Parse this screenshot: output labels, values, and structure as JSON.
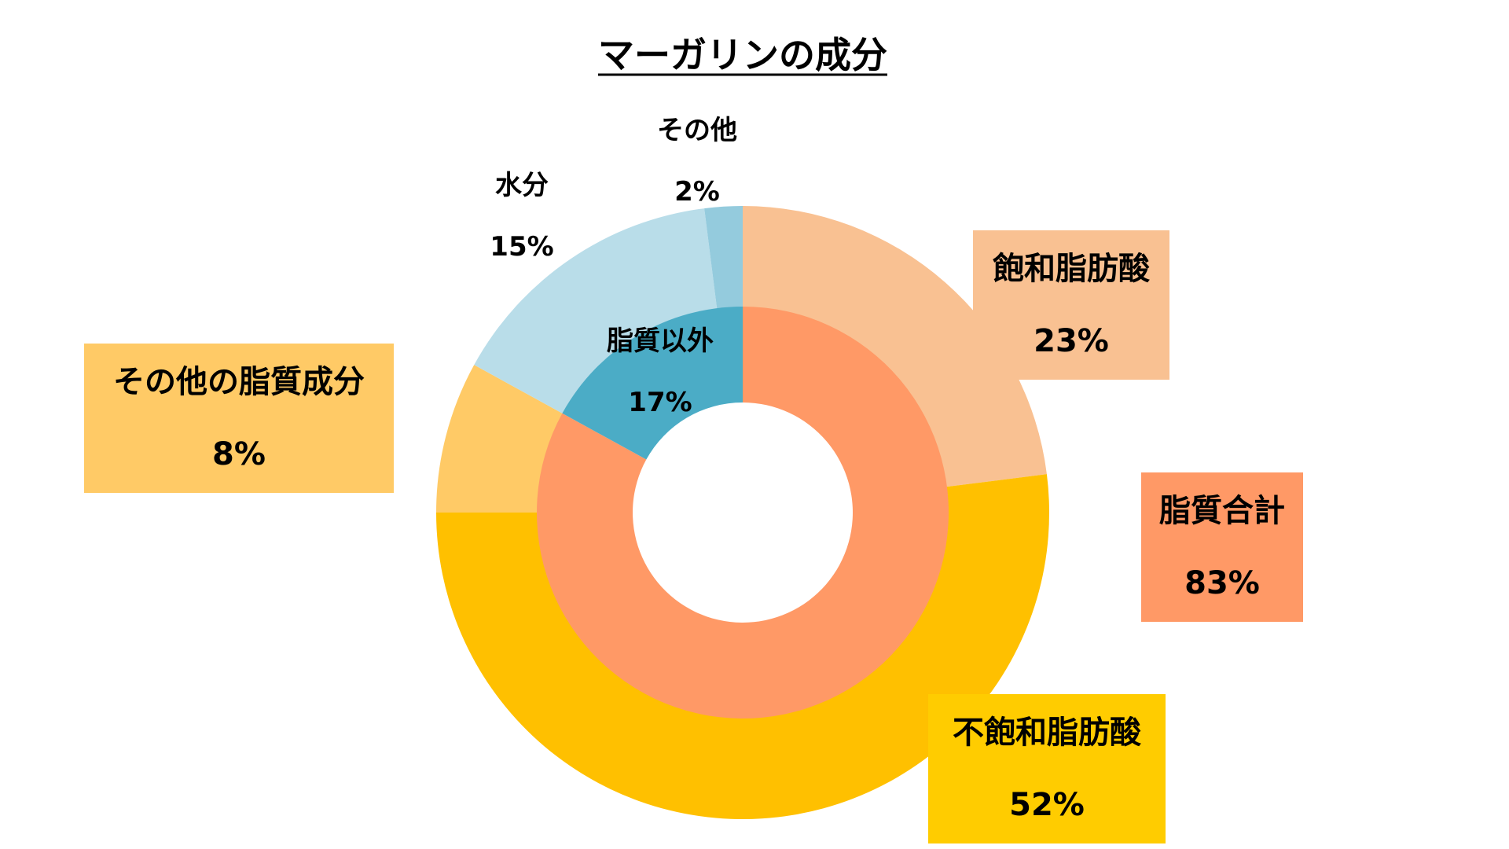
{
  "chart_data": {
    "type": "pie",
    "subtype": "double-donut",
    "title": "マーガリンの成分",
    "title_underlined": true,
    "outer_ring": {
      "slices": [
        {
          "label": "飽和脂肪酸",
          "value": 23,
          "display": "23%",
          "color": "#F9C192",
          "box": true
        },
        {
          "label": "不飽和脂肪酸",
          "value": 52,
          "display": "52%",
          "color": "#FFC000",
          "box": true,
          "box_color": "#FFCC00"
        },
        {
          "label": "その他の脂質成分",
          "value": 8,
          "display": "8%",
          "color": "#FFCA66",
          "box": true
        },
        {
          "label": "水分",
          "value": 15,
          "display": "15%",
          "color": "#B9DDE9",
          "box": false
        },
        {
          "label": "その他",
          "value": 2,
          "display": "2%",
          "color": "#94CBDD",
          "box": false
        }
      ]
    },
    "inner_ring": {
      "slices": [
        {
          "label": "脂質合計",
          "value": 83,
          "display": "83%",
          "color": "#FF9966",
          "box": true
        },
        {
          "label": "脂質以外",
          "value": 17,
          "display": "17%",
          "color": "#4BACC6",
          "box": false
        }
      ]
    },
    "start": "12 o'clock",
    "direction": "clockwise",
    "legend": "none"
  }
}
